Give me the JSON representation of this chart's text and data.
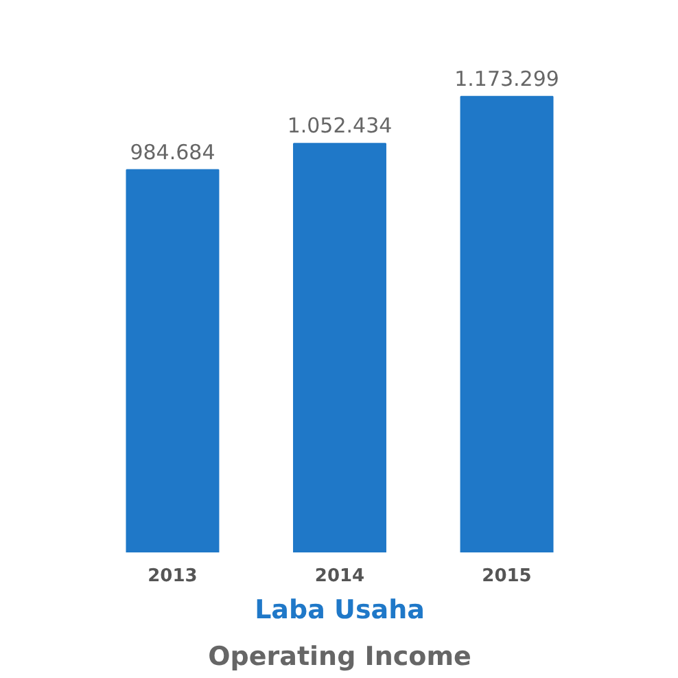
{
  "chart_data": {
    "type": "bar",
    "title": "Laba Usaha",
    "subtitle": "Operating Income",
    "categories": [
      "2013",
      "2014",
      "2015"
    ],
    "values": [
      984684,
      1052434,
      1173299
    ],
    "value_labels": [
      "984.684",
      "1.052.434",
      "1.173.299"
    ],
    "color": "#1f78c8",
    "tick_labels": "x",
    "grid": false
  }
}
